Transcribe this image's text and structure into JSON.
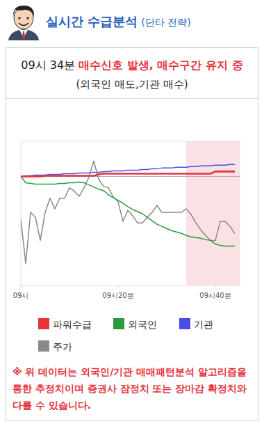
{
  "header": {
    "title": "실시간 수급분석",
    "subtitle": "(단타 전략)"
  },
  "signal": {
    "time": "09시 34분",
    "message": "매수신호 발생, 매수구간 유지 중",
    "detail": "(외국인 매도,기관 매수)"
  },
  "chart_data": {
    "type": "line",
    "x": [
      0,
      1,
      2,
      3,
      4,
      5,
      6,
      7,
      8,
      9,
      10,
      11,
      12,
      13,
      14,
      15,
      16,
      17,
      18,
      19,
      20,
      21,
      22,
      23,
      24,
      25,
      26,
      27,
      28,
      29,
      30,
      31,
      32,
      33,
      34,
      35,
      36,
      37,
      38,
      39,
      40,
      41,
      42,
      43,
      44
    ],
    "series": [
      {
        "name": "파워수급",
        "color": "#e5323b",
        "values": [
          0,
          0,
          0,
          0,
          0,
          1,
          1,
          1,
          1,
          1,
          1,
          1,
          1,
          1,
          1,
          1,
          3,
          4,
          4,
          4,
          4,
          4,
          4,
          4,
          4,
          4,
          4,
          4,
          4,
          4,
          4,
          4,
          4,
          4,
          4,
          4,
          4,
          4,
          4,
          4,
          7,
          7,
          7,
          7,
          7
        ]
      },
      {
        "name": "외국인",
        "color": "#2e9a3e",
        "values": [
          0,
          -9,
          -10,
          -11,
          -11,
          -11,
          -11,
          -11,
          -10,
          -10,
          -9,
          -9,
          -8,
          -9,
          -12,
          -15,
          -18,
          -20,
          -26,
          -30,
          -34,
          -38,
          -43,
          -47,
          -50,
          -53,
          -58,
          -63,
          -68,
          -71,
          -74,
          -77,
          -79,
          -81,
          -84,
          -86,
          -87,
          -88,
          -90,
          -91,
          -96,
          -98,
          -99,
          -99,
          -99
        ]
      },
      {
        "name": "기관",
        "color": "#4b4be6",
        "values": [
          0,
          1,
          1,
          2,
          2,
          2,
          3,
          3,
          3,
          4,
          4,
          4,
          5,
          5,
          5,
          6,
          6,
          7,
          7,
          8,
          8,
          8,
          9,
          9,
          9,
          10,
          10,
          11,
          11,
          12,
          12,
          12,
          13,
          13,
          13,
          14,
          14,
          15,
          15,
          15,
          16,
          16,
          16,
          17,
          17
        ]
      },
      {
        "name": "주가",
        "color": "#8a8a8a",
        "values": [
          -61,
          -124,
          -51,
          -58,
          -91,
          -51,
          -31,
          -46,
          -31,
          -31,
          -16,
          -21,
          -28,
          -16,
          -1,
          22,
          -4,
          -14,
          -16,
          -29,
          -36,
          -64,
          -48,
          -56,
          -66,
          -66,
          -58,
          -51,
          -41,
          -51,
          -51,
          -51,
          -51,
          -51,
          -46,
          -54,
          -66,
          -76,
          -84,
          -91,
          -91,
          -64,
          -64,
          -71,
          -81
        ]
      }
    ],
    "xlim": [
      0,
      45
    ],
    "ylim": [
      -155,
      50
    ],
    "xticks": [
      {
        "value": 0,
        "label": "09시"
      },
      {
        "value": 20,
        "label": "09시20분"
      },
      {
        "value": 40,
        "label": "09시40분"
      }
    ],
    "yticks": [
      0
    ],
    "grid": true,
    "tick_labels": "x",
    "highlight_range": [
      34,
      45
    ]
  },
  "footer": "※ 위 데이터는 외국인/기관 매매패턴분석 알고리즘을 통한 추정치이며 증권사 잠정치 또는 장마감 확정치와 다를 수 있습니다."
}
